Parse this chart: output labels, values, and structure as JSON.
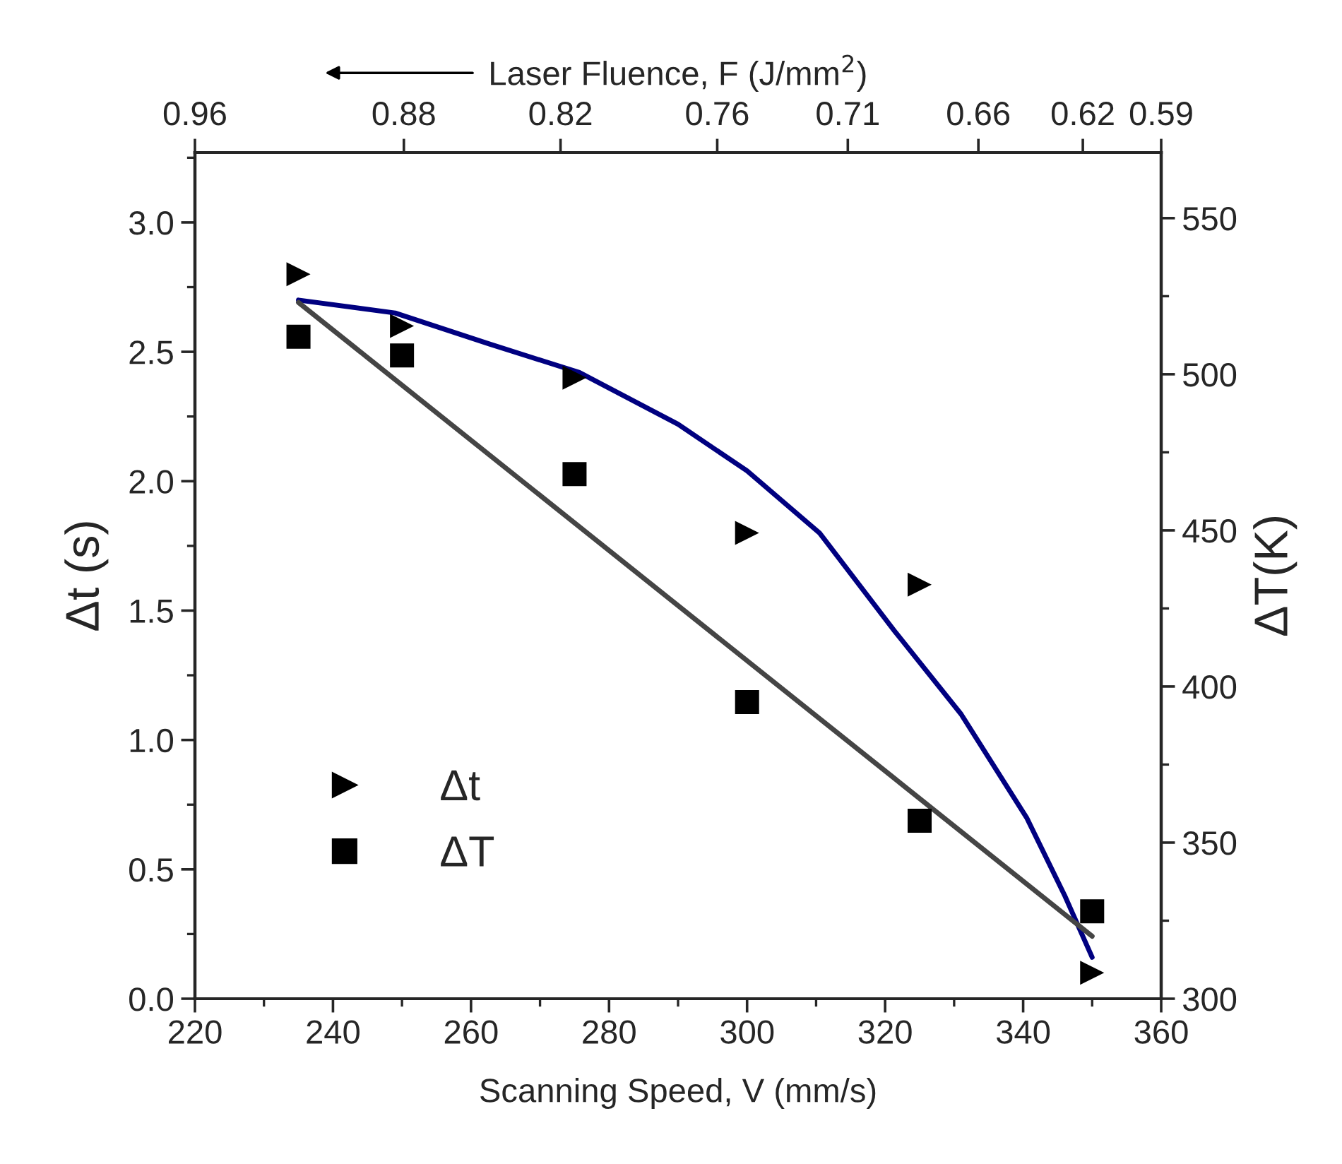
{
  "chart_data": {
    "type": "scatter",
    "xlabel": "Scanning Speed, V (mm/s)",
    "ylabel": "Δt (s)",
    "y2label": "ΔT(K)",
    "x2label": "Laser Fluence, F (J/mm$^{2}$)",
    "xlim": [
      220,
      360
    ],
    "xticks": [
      220,
      240,
      260,
      280,
      300,
      320,
      340,
      360
    ],
    "x2lim": [
      0.96,
      0.59
    ],
    "x2ticks": [
      0.96,
      0.88,
      0.82,
      0.76,
      0.71,
      0.66,
      0.62,
      0.59
    ],
    "ylim": [
      0,
      3.27
    ],
    "yticks": [
      {
        "value": 0,
        "label": "0.0"
      },
      0.5,
      {
        "value": 1,
        "label": "1.0"
      },
      1.5,
      {
        "value": 2,
        "label": "2.0"
      },
      2.5,
      {
        "value": 3,
        "label": "3.0"
      }
    ],
    "y2lim": [
      300,
      571
    ],
    "y2ticks": [
      300,
      350,
      400,
      450,
      500,
      550
    ],
    "legend": "bottom left",
    "grid": false,
    "series": [
      {
        "name": "Δt",
        "marker": "triangle",
        "color": "#000000",
        "x": [
          235,
          250,
          275,
          300,
          325,
          350
        ],
        "values": [
          2.8,
          2.6,
          2.4,
          1.8,
          1.6,
          0.1
        ]
      },
      {
        "name": "ΔT",
        "marker": "square",
        "axis": "y2",
        "color": "#000000",
        "x": [
          235,
          250,
          275,
          300,
          325,
          350
        ],
        "values": [
          512,
          506,
          468,
          395,
          357,
          328
        ]
      },
      {
        "type": "line",
        "line_style": "solid",
        "color": "#000080",
        "x": [
          235,
          249,
          262.7,
          275.7,
          290,
          300,
          310.5,
          321.4,
          331,
          340.5,
          346,
          350
        ],
        "values": [
          2.7,
          2.65,
          2.53,
          2.42,
          2.22,
          2.04,
          1.8,
          1.42,
          1.1,
          0.7,
          0.4,
          0.16
        ]
      },
      {
        "type": "line",
        "line_style": "solid",
        "axis": "y2",
        "color": "#454545",
        "x": [
          235,
          350
        ],
        "values": [
          523,
          320
        ]
      }
    ]
  }
}
